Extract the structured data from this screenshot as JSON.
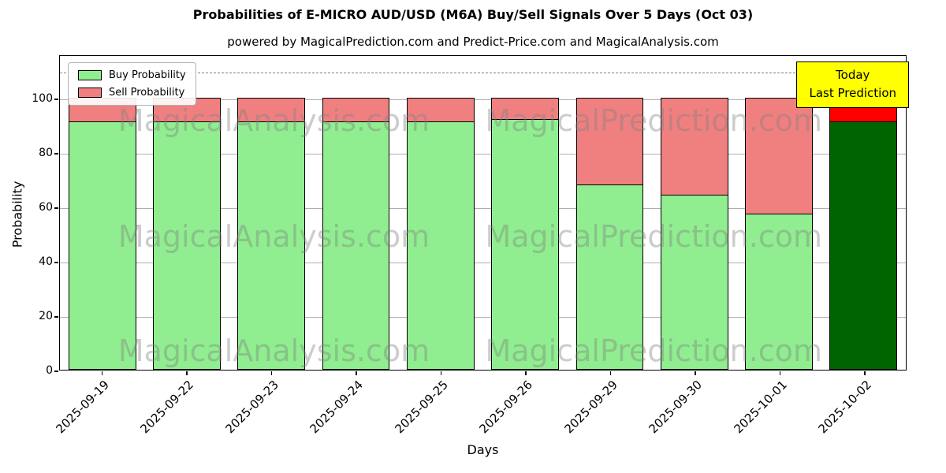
{
  "title": "Probabilities of E-MICRO AUD/USD (M6A) Buy/Sell Signals Over 5 Days (Oct 03)",
  "subtitle": "powered by MagicalPrediction.com and Predict-Price.com and MagicalAnalysis.com",
  "labels": {
    "x": "Days",
    "y": "Probability"
  },
  "legend": {
    "buy": "Buy Probability",
    "sell": "Sell Probability"
  },
  "annotation": {
    "line1": "Today",
    "line2": "Last Prediction"
  },
  "watermarks": [
    "MagicalAnalysis.com",
    "MagicalPrediction.com"
  ],
  "chart_data": {
    "type": "bar",
    "stacked": true,
    "title": "Probabilities of E-MICRO AUD/USD (M6A) Buy/Sell Signals Over 5 Days (Oct 03)",
    "xlabel": "Days",
    "ylabel": "Probability",
    "categories": [
      "2025-09-19",
      "2025-09-22",
      "2025-09-23",
      "2025-09-24",
      "2025-09-25",
      "2025-09-26",
      "2025-09-29",
      "2025-09-30",
      "2025-10-01",
      "2025-10-02"
    ],
    "series": [
      {
        "name": "Buy Probability",
        "values": [
          91,
          91,
          91,
          91,
          91,
          92,
          68,
          64,
          57,
          91
        ]
      },
      {
        "name": "Sell Probability",
        "values": [
          9,
          9,
          9,
          9,
          9,
          8,
          32,
          36,
          43,
          9
        ]
      }
    ],
    "yticks": [
      0,
      20,
      40,
      60,
      80,
      100
    ],
    "ylim": [
      0,
      116
    ],
    "dashed_line_y": 110,
    "grid": true,
    "legend_position": "upper left",
    "colors": {
      "buy": "#90EE90",
      "sell": "#F08080",
      "buy_last": "#006400",
      "sell_last": "#FF0000",
      "annotation_bg": "#FFFF00",
      "grid": "#B0B0B0",
      "watermark": "#808080"
    }
  }
}
